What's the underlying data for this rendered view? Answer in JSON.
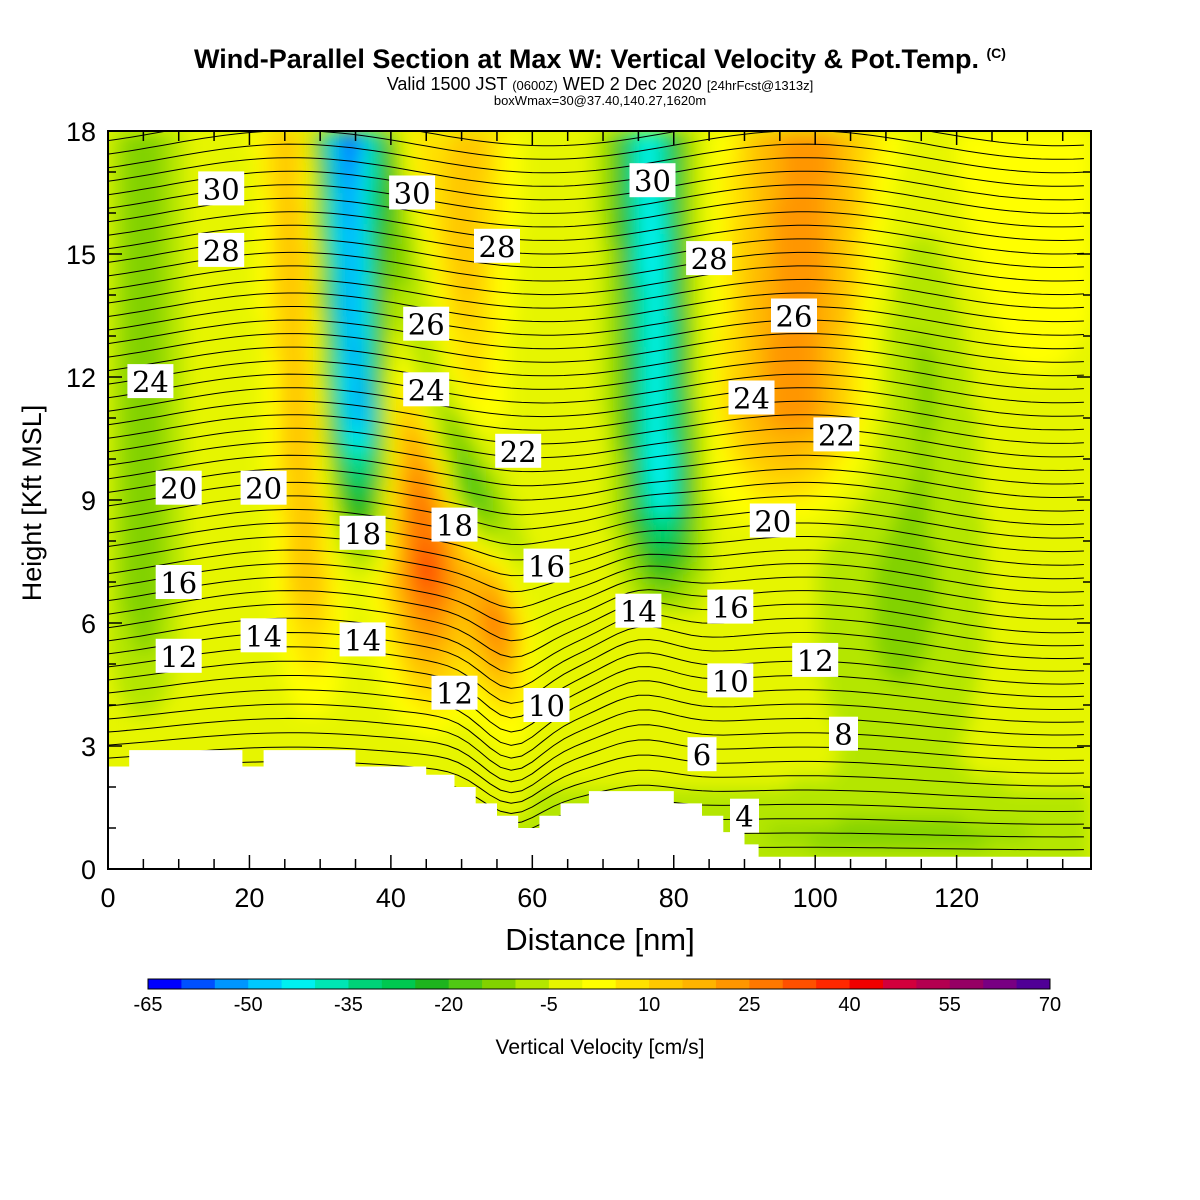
{
  "header": {
    "title": "Wind-Parallel Section at Max W: Vertical Velocity & Pot.Temp.",
    "title_mark": "(C)",
    "valid_prefix": "Valid 1500 JST",
    "valid_utc": "(0600Z)",
    "valid_date": "WED 2 Dec 2020",
    "forecast": "[24hrFcst@1313z]",
    "box": "boxWmax=30@37.40,140.27,1620m"
  },
  "chart_data": {
    "type": "heatmap",
    "xlabel": "Distance [nm]",
    "ylabel": "Height [Kft MSL]",
    "xlim": [
      0,
      139
    ],
    "ylim": [
      0,
      18
    ],
    "x_ticks": [
      "0",
      "20",
      "40",
      "60",
      "80",
      "100",
      "120"
    ],
    "x_tick_values": [
      0,
      20,
      40,
      60,
      80,
      100,
      120
    ],
    "y_ticks": [
      "0",
      "3",
      "6",
      "9",
      "12",
      "15",
      "18"
    ],
    "y_tick_values": [
      0,
      3,
      6,
      9,
      12,
      15,
      18
    ],
    "colorbar": {
      "title": "Vertical Velocity [cm/s]",
      "min": -65,
      "max": 70,
      "step": 5,
      "labels": [
        "-65",
        "-50",
        "-35",
        "-20",
        "-5",
        "10",
        "25",
        "40",
        "55",
        "70"
      ],
      "colors": [
        "#0000ff",
        "#0050ff",
        "#0096ff",
        "#00c8ff",
        "#00f0f0",
        "#00e6b4",
        "#00d278",
        "#00c850",
        "#1eb41e",
        "#50c814",
        "#82d200",
        "#b4e600",
        "#e6f500",
        "#ffff00",
        "#ffe100",
        "#ffc800",
        "#ffb400",
        "#ff9600",
        "#ff7800",
        "#ff5000",
        "#ff2800",
        "#f00000",
        "#d2003c",
        "#b40050",
        "#960064",
        "#780082",
        "#500096"
      ]
    },
    "theta_contour_labels": [
      {
        "text": "30",
        "x": 16,
        "y": 16.6
      },
      {
        "text": "30",
        "x": 43,
        "y": 16.5
      },
      {
        "text": "30",
        "x": 77,
        "y": 16.8
      },
      {
        "text": "28",
        "x": 16,
        "y": 15.1
      },
      {
        "text": "28",
        "x": 55,
        "y": 15.2
      },
      {
        "text": "28",
        "x": 85,
        "y": 14.9
      },
      {
        "text": "26",
        "x": 45,
        "y": 13.3
      },
      {
        "text": "26",
        "x": 97,
        "y": 13.5
      },
      {
        "text": "24",
        "x": 6,
        "y": 11.9
      },
      {
        "text": "24",
        "x": 45,
        "y": 11.7
      },
      {
        "text": "24",
        "x": 91,
        "y": 11.5
      },
      {
        "text": "22",
        "x": 58,
        "y": 10.2
      },
      {
        "text": "22",
        "x": 103,
        "y": 10.6
      },
      {
        "text": "20",
        "x": 10,
        "y": 9.3
      },
      {
        "text": "20",
        "x": 22,
        "y": 9.3
      },
      {
        "text": "20",
        "x": 94,
        "y": 8.5
      },
      {
        "text": "18",
        "x": 36,
        "y": 8.2
      },
      {
        "text": "18",
        "x": 49,
        "y": 8.4
      },
      {
        "text": "16",
        "x": 62,
        "y": 7.4
      },
      {
        "text": "16",
        "x": 10,
        "y": 7.0
      },
      {
        "text": "16",
        "x": 88,
        "y": 6.4
      },
      {
        "text": "14",
        "x": 75,
        "y": 6.3
      },
      {
        "text": "14",
        "x": 22,
        "y": 5.7
      },
      {
        "text": "14",
        "x": 36,
        "y": 5.6
      },
      {
        "text": "12",
        "x": 10,
        "y": 5.2
      },
      {
        "text": "12",
        "x": 100,
        "y": 5.1
      },
      {
        "text": "12",
        "x": 49,
        "y": 4.3
      },
      {
        "text": "10",
        "x": 62,
        "y": 4.0
      },
      {
        "text": "10",
        "x": 88,
        "y": 4.6
      },
      {
        "text": "8",
        "x": 104,
        "y": 3.3
      },
      {
        "text": "6",
        "x": 84,
        "y": 2.8
      },
      {
        "text": "4",
        "x": 90,
        "y": 1.3
      }
    ],
    "terrain_kft": [
      [
        0,
        2.5
      ],
      [
        3,
        2.5
      ],
      [
        3,
        2.9
      ],
      [
        19,
        2.9
      ],
      [
        19,
        2.5
      ],
      [
        22,
        2.5
      ],
      [
        22,
        2.9
      ],
      [
        35,
        2.9
      ],
      [
        35,
        2.5
      ],
      [
        45,
        2.5
      ],
      [
        45,
        2.3
      ],
      [
        49,
        2.3
      ],
      [
        49,
        2.0
      ],
      [
        52,
        2.0
      ],
      [
        52,
        1.6
      ],
      [
        55,
        1.6
      ],
      [
        55,
        1.3
      ],
      [
        58,
        1.3
      ],
      [
        58,
        1.0
      ],
      [
        61,
        1.0
      ],
      [
        61,
        1.3
      ],
      [
        64,
        1.3
      ],
      [
        64,
        1.6
      ],
      [
        68,
        1.6
      ],
      [
        68,
        1.9
      ],
      [
        80,
        1.9
      ],
      [
        80,
        1.6
      ],
      [
        84,
        1.6
      ],
      [
        84,
        1.3
      ],
      [
        87,
        1.3
      ],
      [
        87,
        0.9
      ],
      [
        90,
        0.9
      ],
      [
        90,
        0.6
      ],
      [
        92,
        0.6
      ],
      [
        92,
        0.3
      ],
      [
        139,
        0.3
      ],
      [
        139,
        0
      ]
    ]
  }
}
